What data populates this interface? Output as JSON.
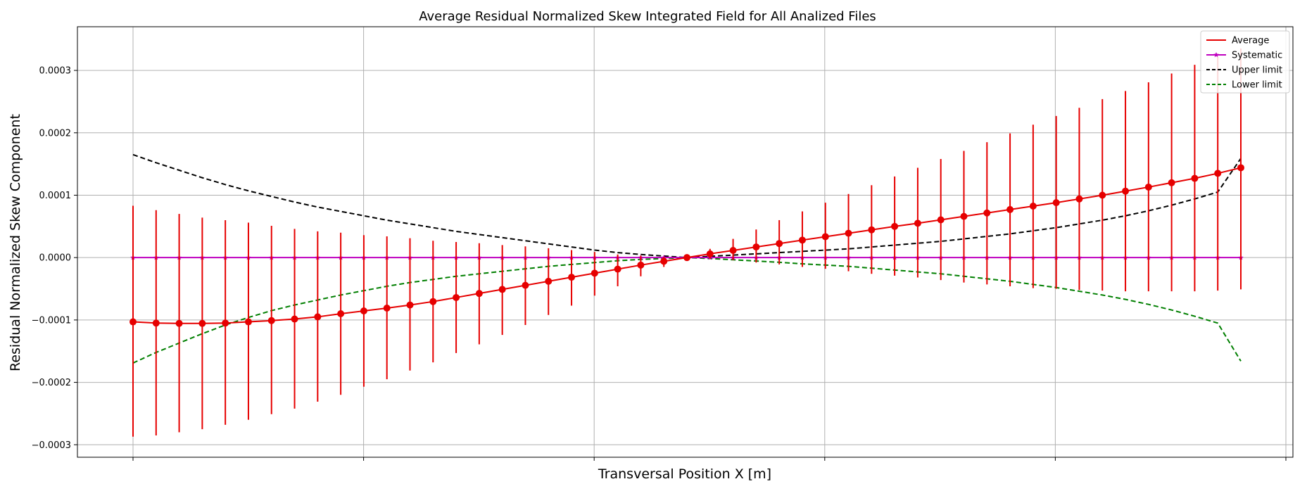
{
  "chart_data": {
    "type": "line",
    "title": "Average Residual Normalized Skew Integrated Field for All Analized Files",
    "xlabel": "Transversal Position X [m]",
    "ylabel": "Residual Normalized Skew Component",
    "x_tick_labels": [],
    "ylim": [
      -0.00032,
      0.00037
    ],
    "yticks": [
      {
        "value": 0.0003,
        "label": "0.0003"
      },
      {
        "value": 0.0002,
        "label": "0.0002"
      },
      {
        "value": 0.0001,
        "label": "0.0001"
      },
      {
        "value": 0.0,
        "label": "0.0000"
      },
      {
        "value": -0.0001,
        "label": "−0.0001"
      },
      {
        "value": -0.0002,
        "label": "−0.0002"
      },
      {
        "value": -0.0003,
        "label": "−0.0003"
      }
    ],
    "grid": true,
    "legend_position": "top-right",
    "series": [
      {
        "name": "Average",
        "color": "#e60000",
        "marker": "circle",
        "style": "solid",
        "values": [
          -0.000103,
          -0.000105,
          -0.0001055,
          -0.0001055,
          -0.000105,
          -0.000103,
          -0.000101,
          -9.85e-05,
          -9.5e-05,
          -9e-05,
          -8.55e-05,
          -8.1e-05,
          -7.6e-05,
          -7.05e-05,
          -6.4e-05,
          -5.75e-05,
          -5.1e-05,
          -4.45e-05,
          -3.8e-05,
          -3.15e-05,
          -2.5e-05,
          -1.85e-05,
          -1.2e-05,
          -6e-06,
          0.0,
          6e-06,
          1.15e-05,
          1.7e-05,
          2.25e-05,
          2.8e-05,
          3.35e-05,
          3.9e-05,
          4.45e-05,
          5e-05,
          5.5e-05,
          6.05e-05,
          6.6e-05,
          7.15e-05,
          7.7e-05,
          8.25e-05,
          8.8e-05,
          9.4e-05,
          0.0001,
          0.0001065,
          0.000113,
          0.00012,
          0.000127,
          0.000135,
          0.000144
        ],
        "err_low": [
          -0.000287,
          -0.000285,
          -0.00028,
          -0.000275,
          -0.000268,
          -0.00026,
          -0.000251,
          -0.000242,
          -0.000231,
          -0.00022,
          -0.000207,
          -0.000195,
          -0.000181,
          -0.000168,
          -0.000153,
          -0.000139,
          -0.000124,
          -0.000108,
          -9.2e-05,
          -7.7e-05,
          -6.1e-05,
          -4.6e-05,
          -3e-05,
          -1.5e-05,
          0.0,
          -2e-06,
          -4e-06,
          -8e-06,
          -1.1e-05,
          -1.5e-05,
          -1.8e-05,
          -2.2e-05,
          -2.6e-05,
          -2.9e-05,
          -3.2e-05,
          -3.6e-05,
          -4e-05,
          -4.3e-05,
          -4.6e-05,
          -4.9e-05,
          -5e-05,
          -5.2e-05,
          -5.3e-05,
          -5.4e-05,
          -5.4e-05,
          -5.4e-05,
          -5.4e-05,
          -5.3e-05,
          -5.1e-05
        ],
        "err_high": [
          8.3e-05,
          7.6e-05,
          7e-05,
          6.4e-05,
          6e-05,
          5.6e-05,
          5.1e-05,
          4.6e-05,
          4.2e-05,
          4e-05,
          3.6e-05,
          3.4e-05,
          3.1e-05,
          2.7e-05,
          2.5e-05,
          2.3e-05,
          2e-05,
          1.8e-05,
          1.5e-05,
          1.2e-05,
          9e-06,
          5e-06,
          3e-06,
          1e-06,
          0.0,
          1.4e-05,
          3e-05,
          4.5e-05,
          6e-05,
          7.4e-05,
          8.8e-05,
          0.000102,
          0.000116,
          0.00013,
          0.000144,
          0.000158,
          0.000171,
          0.000185,
          0.000199,
          0.000213,
          0.000227,
          0.00024,
          0.000254,
          0.000267,
          0.000281,
          0.000295,
          0.000309,
          0.000322,
          0.000335
        ]
      },
      {
        "name": "Systematic",
        "color": "#bf00bf",
        "marker": "star",
        "style": "solid",
        "values": [
          0,
          0,
          0,
          0,
          0,
          0,
          0,
          0,
          0,
          0,
          0,
          0,
          0,
          0,
          0,
          0,
          0,
          0,
          0,
          0,
          0,
          0,
          0,
          0,
          0,
          0,
          0,
          0,
          0,
          0,
          0,
          0,
          0,
          0,
          0,
          0,
          0,
          0,
          0,
          0,
          0,
          0,
          0,
          0,
          0,
          0,
          0,
          0,
          0
        ]
      },
      {
        "name": "Upper limit",
        "color": "#000000",
        "marker": "none",
        "style": "dashed",
        "values": [
          0.000165,
          0.000152,
          0.00014,
          0.000128,
          0.000117,
          0.000107,
          9.8e-05,
          8.9e-05,
          8.1e-05,
          7.4e-05,
          6.7e-05,
          6e-05,
          5.4e-05,
          4.8e-05,
          4.2e-05,
          3.7e-05,
          3.2e-05,
          2.7e-05,
          2.2e-05,
          1.7e-05,
          1.2e-05,
          8e-06,
          5e-06,
          2.5e-06,
          0.0,
          2e-06,
          4e-06,
          6e-06,
          8e-06,
          1e-05,
          1.2e-05,
          1.4e-05,
          1.7e-05,
          2e-05,
          2.3e-05,
          2.6e-05,
          3e-05,
          3.4e-05,
          3.8e-05,
          4.3e-05,
          4.8e-05,
          5.4e-05,
          6e-05,
          6.7e-05,
          7.5e-05,
          8.4e-05,
          9.4e-05,
          0.000105,
          0.000159
        ]
      },
      {
        "name": "Lower limit",
        "color": "#007f00",
        "marker": "none",
        "style": "dashed",
        "values": [
          -0.000169,
          -0.000152,
          -0.000137,
          -0.000122,
          -0.000108,
          -9.6e-05,
          -8.5e-05,
          -7.6e-05,
          -6.8e-05,
          -6e-05,
          -5.3e-05,
          -4.6e-05,
          -4e-05,
          -3.5e-05,
          -3e-05,
          -2.6e-05,
          -2.2e-05,
          -1.8e-05,
          -1.4e-05,
          -1.1e-05,
          -8e-06,
          -5e-06,
          -3e-06,
          -1.5e-06,
          0.0,
          -1.5e-06,
          -3.5e-06,
          -5.5e-06,
          -7.5e-06,
          -1e-05,
          -1.2e-05,
          -1.4e-05,
          -1.7e-05,
          -2e-05,
          -2.3e-05,
          -2.6e-05,
          -3e-05,
          -3.4e-05,
          -3.8e-05,
          -4.3e-05,
          -4.8e-05,
          -5.4e-05,
          -6e-05,
          -6.7e-05,
          -7.5e-05,
          -8.4e-05,
          -9.4e-05,
          -0.000105,
          -0.000166
        ]
      }
    ]
  }
}
